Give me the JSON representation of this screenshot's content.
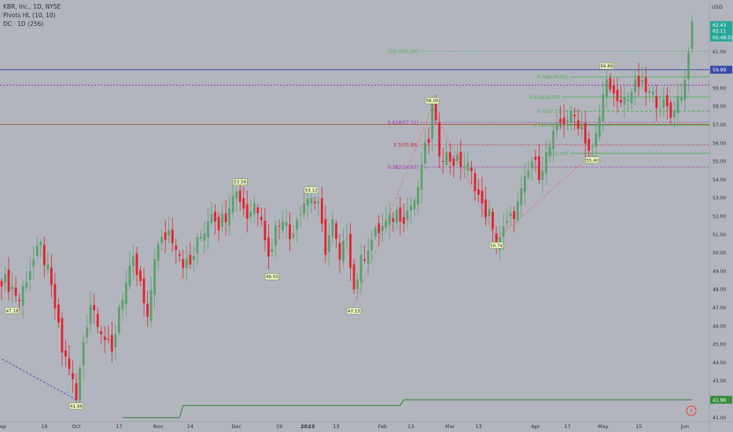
{
  "legend": {
    "symbol": "KBR, Inc., 1D, NYSE",
    "indicator1": "Pivots HL (10, 10)",
    "indicator2": "DC · 1D (256)"
  },
  "colors": {
    "background": "#b2b5be",
    "up": "#5d9f6c",
    "down": "#e0242f",
    "fib_green": "#4caf50",
    "fib_purple": "#9c27b0",
    "fib_red": "#c62828",
    "donchian": "#2e7d32",
    "blue_line": "#3949ab",
    "orange_line": "#a1663a",
    "zigzag_red": "#e57373",
    "zigzag_blue": "#3f51b5"
  },
  "chart_data": {
    "type": "candlestick",
    "currency": "USD",
    "ylim": [
      40.8,
      63.2
    ],
    "y_ticks": [
      "62.00",
      "61.00",
      "60.00",
      "59.00",
      "58.00",
      "57.00",
      "56.00",
      "55.00",
      "54.00",
      "53.00",
      "52.00",
      "51.00",
      "50.00",
      "49.00",
      "48.00",
      "47.00",
      "46.00",
      "45.00",
      "44.00",
      "43.00",
      "42.00",
      "41.00"
    ],
    "x_ticks": [
      {
        "label": "Sep",
        "i": 0
      },
      {
        "label": "19",
        "i": 12
      },
      {
        "label": "Oct",
        "i": 21
      },
      {
        "label": "17",
        "i": 33
      },
      {
        "label": "Nov",
        "i": 44
      },
      {
        "label": "14",
        "i": 53
      },
      {
        "label": "Dec",
        "i": 66
      },
      {
        "label": "19",
        "i": 78
      },
      {
        "label": "2023",
        "i": 86
      },
      {
        "label": "13",
        "i": 94
      },
      {
        "label": "Feb",
        "i": 107
      },
      {
        "label": "13",
        "i": 115
      },
      {
        "label": "Mar",
        "i": 126
      },
      {
        "label": "13",
        "i": 134
      },
      {
        "label": "Apr",
        "i": 150
      },
      {
        "label": "17",
        "i": 159
      },
      {
        "label": "May",
        "i": 169
      },
      {
        "label": "15",
        "i": 179
      },
      {
        "label": "Jun",
        "i": 192
      }
    ],
    "n_bars": 195,
    "anchors": [
      [
        0,
        48.6
      ],
      [
        3,
        48.1
      ],
      [
        5,
        47.4
      ],
      [
        7,
        48.7
      ],
      [
        9,
        49.6
      ],
      [
        11,
        50.3
      ],
      [
        13,
        48.9
      ],
      [
        15,
        47.0
      ],
      [
        17,
        44.6
      ],
      [
        19,
        43.8
      ],
      [
        21,
        41.9
      ],
      [
        23,
        45.2
      ],
      [
        25,
        47.3
      ],
      [
        27,
        46.4
      ],
      [
        29,
        45.3
      ],
      [
        31,
        44.4
      ],
      [
        33,
        47.1
      ],
      [
        35,
        48.3
      ],
      [
        37,
        49.4
      ],
      [
        39,
        48.2
      ],
      [
        41,
        46.1
      ],
      [
        43,
        49.9
      ],
      [
        45,
        50.6
      ],
      [
        47,
        51.2
      ],
      [
        49,
        50.5
      ],
      [
        51,
        49.5
      ],
      [
        53,
        49.3
      ],
      [
        55,
        50.5
      ],
      [
        57,
        51.3
      ],
      [
        59,
        52.4
      ],
      [
        61,
        51.6
      ],
      [
        63,
        52.1
      ],
      [
        65,
        53.5
      ],
      [
        67,
        53.0
      ],
      [
        69,
        52.0
      ],
      [
        71,
        52.7
      ],
      [
        73,
        52.2
      ],
      [
        75,
        49.7
      ],
      [
        77,
        51.3
      ],
      [
        79,
        52.1
      ],
      [
        81,
        50.8
      ],
      [
        83,
        52.0
      ],
      [
        85,
        52.8
      ],
      [
        87,
        53.1
      ],
      [
        89,
        52.4
      ],
      [
        91,
        50.2
      ],
      [
        93,
        51.6
      ],
      [
        95,
        49.4
      ],
      [
        97,
        51.1
      ],
      [
        99,
        48.0
      ],
      [
        101,
        49.5
      ],
      [
        103,
        50.4
      ],
      [
        105,
        51.0
      ],
      [
        107,
        51.4
      ],
      [
        109,
        51.7
      ],
      [
        111,
        52.2
      ],
      [
        113,
        52.0
      ],
      [
        115,
        52.6
      ],
      [
        117,
        53.2
      ],
      [
        118,
        54.9
      ],
      [
        120,
        56.2
      ],
      [
        121,
        58.0
      ],
      [
        123,
        55.6
      ],
      [
        125,
        55.3
      ],
      [
        127,
        55.0
      ],
      [
        129,
        54.9
      ],
      [
        131,
        54.6
      ],
      [
        133,
        53.8
      ],
      [
        135,
        52.4
      ],
      [
        137,
        52.1
      ],
      [
        138,
        51.0
      ],
      [
        139,
        50.6
      ],
      [
        141,
        51.2
      ],
      [
        143,
        51.8
      ],
      [
        145,
        52.6
      ],
      [
        147,
        53.8
      ],
      [
        149,
        55.0
      ],
      [
        151,
        54.4
      ],
      [
        153,
        55.3
      ],
      [
        155,
        56.3
      ],
      [
        157,
        57.1
      ],
      [
        159,
        57.4
      ],
      [
        161,
        57.4
      ],
      [
        163,
        56.9
      ],
      [
        165,
        55.6
      ],
      [
        166,
        55.6
      ],
      [
        167,
        56.3
      ],
      [
        169,
        58.5
      ],
      [
        170,
        59.9
      ],
      [
        171,
        58.7
      ],
      [
        173,
        58.0
      ],
      [
        175,
        58.4
      ],
      [
        177,
        58.9
      ],
      [
        179,
        59.2
      ],
      [
        181,
        58.8
      ],
      [
        183,
        58.5
      ],
      [
        185,
        58.2
      ],
      [
        187,
        57.8
      ],
      [
        188,
        57.4
      ],
      [
        189,
        58.1
      ],
      [
        191,
        58.8
      ],
      [
        192,
        59.4
      ],
      [
        193,
        61.3
      ],
      [
        194,
        62.2
      ]
    ],
    "fib_levels": [
      {
        "label": "100.0(61.00)",
        "price": 61.0,
        "color": "green",
        "style": "dotted"
      },
      {
        "label": "0.786(59.60)",
        "price": 59.6,
        "color": "green",
        "style": "solid"
      },
      {
        "label": "0.618(58.50)",
        "price": 58.5,
        "color": "green",
        "style": "solid"
      },
      {
        "label": "0.5(57.73)",
        "price": 57.73,
        "color": "green",
        "style": "dashed"
      },
      {
        "label": "0.382(56.96)",
        "price": 56.96,
        "color": "green",
        "style": "solid"
      },
      {
        "label": "0.618(57.11)",
        "price": 57.11,
        "color": "purple",
        "style": "dotted"
      },
      {
        "label": "0.5(55.89)",
        "price": 55.89,
        "color": "red",
        "style": "dotted"
      },
      {
        "label": "0.382(54.67)",
        "price": 54.67,
        "color": "purple",
        "style": "dotted"
      },
      {
        "label": "0(55.43)",
        "price": 55.43,
        "color": "green",
        "style": "solid"
      }
    ],
    "horizontal_lines": [
      {
        "price": 59.99,
        "color": "blue"
      },
      {
        "price": 59.15,
        "color": "purple"
      },
      {
        "price": 57.0,
        "color": "orange"
      }
    ],
    "pivots": [
      {
        "label": "47.18",
        "i": 3,
        "price": 47.18,
        "pos": "below"
      },
      {
        "label": "41.96",
        "i": 21,
        "price": 41.96,
        "pos": "below"
      },
      {
        "label": "53.56",
        "i": 67,
        "price": 53.56,
        "pos": "above"
      },
      {
        "label": "49.03",
        "i": 76,
        "price": 49.03,
        "pos": "below"
      },
      {
        "label": "53.12",
        "i": 87,
        "price": 53.12,
        "pos": "above"
      },
      {
        "label": "47.15",
        "i": 99,
        "price": 47.15,
        "pos": "below"
      },
      {
        "label": "58.00",
        "i": 121,
        "price": 58.0,
        "pos": "above"
      },
      {
        "label": "50.74",
        "i": 139,
        "price": 50.74,
        "pos": "below"
      },
      {
        "label": "59.89",
        "i": 170,
        "price": 59.89,
        "pos": "above"
      },
      {
        "label": "55.40",
        "i": 166,
        "price": 55.4,
        "pos": "below"
      }
    ],
    "zigzag": [
      [
        21,
        41.96
      ],
      [
        0,
        44.2
      ]
    ],
    "zigzag2": [
      [
        99,
        47.15
      ],
      [
        121,
        58.0
      ],
      [
        139,
        50.74
      ],
      [
        166,
        55.4
      ]
    ],
    "donchian_low": [
      [
        34,
        40.98
      ],
      [
        50,
        40.98
      ],
      [
        51,
        41.65
      ],
      [
        112,
        41.65
      ],
      [
        113,
        41.96
      ],
      [
        194,
        41.96
      ]
    ],
    "price_labels": [
      {
        "value": "62.43",
        "price": 62.43,
        "bg": "#26a69a"
      },
      {
        "value": "62.11",
        "price": 62.11,
        "bg": "#26a69a"
      },
      {
        "value": "05:48:51",
        "price": 61.75,
        "bg": "#26a69a"
      },
      {
        "value": "59.99",
        "price": 59.99,
        "bg": "#3949ab"
      },
      {
        "value": "41.96",
        "price": 41.96,
        "bg": "#388e3c"
      }
    ]
  }
}
